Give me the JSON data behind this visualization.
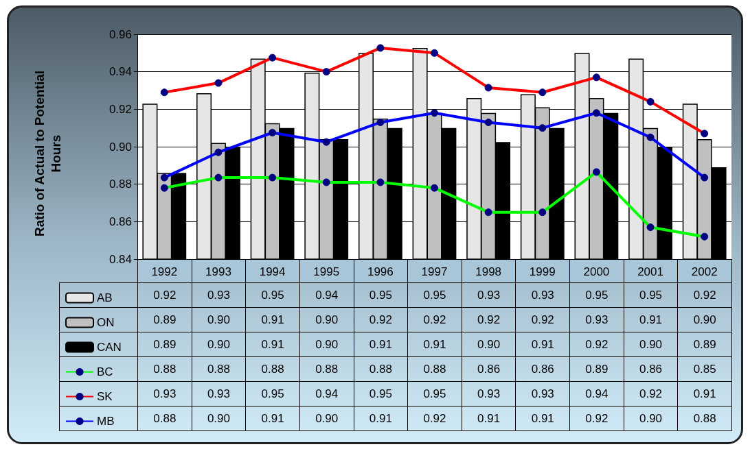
{
  "chart_data": {
    "type": "bar",
    "ylabel": "Ratio of Actual to Potential Hours",
    "categories": [
      "1992",
      "1993",
      "1994",
      "1995",
      "1996",
      "1997",
      "1998",
      "1999",
      "2000",
      "2001",
      "2002"
    ],
    "series": [
      {
        "name": "AB",
        "color": "#e6e6e6",
        "values": [
          0.923,
          0.9285,
          0.947,
          0.9395,
          0.95,
          0.9527,
          0.926,
          0.928,
          0.95,
          0.947,
          0.923
        ],
        "value_labels": [
          "0.92",
          "0.93",
          "0.95",
          "0.94",
          "0.95",
          "0.95",
          "0.93",
          "0.93",
          "0.95",
          "0.95",
          "0.92"
        ]
      },
      {
        "name": "ON",
        "color": "#c0c0c0",
        "values": [
          0.886,
          0.902,
          0.9125,
          0.904,
          0.915,
          0.918,
          0.918,
          0.921,
          0.926,
          0.91,
          0.904
        ],
        "value_labels": [
          "0.89",
          "0.90",
          "0.91",
          "0.90",
          "0.92",
          "0.92",
          "0.92",
          "0.92",
          "0.93",
          "0.91",
          "0.90"
        ]
      },
      {
        "name": "CAN",
        "color": "#000000",
        "values": [
          0.886,
          0.9,
          0.91,
          0.904,
          0.91,
          0.91,
          0.9025,
          0.91,
          0.918,
          0.9,
          0.889
        ],
        "value_labels": [
          "0.89",
          "0.90",
          "0.91",
          "0.90",
          "0.91",
          "0.91",
          "0.90",
          "0.91",
          "0.92",
          "0.90",
          "0.89"
        ]
      },
      {
        "name": "BC",
        "type": "line",
        "color": "#00ff00",
        "values": [
          0.878,
          0.8835,
          0.8835,
          0.881,
          0.881,
          0.878,
          0.865,
          0.865,
          0.8865,
          0.857,
          0.852
        ],
        "value_labels": [
          "0.88",
          "0.88",
          "0.88",
          "0.88",
          "0.88",
          "0.88",
          "0.86",
          "0.86",
          "0.89",
          "0.86",
          "0.85"
        ]
      },
      {
        "name": "SK",
        "type": "line",
        "color": "#ff0000",
        "values": [
          0.929,
          0.934,
          0.9475,
          0.94,
          0.9527,
          0.95,
          0.9315,
          0.929,
          0.937,
          0.924,
          0.907
        ],
        "value_labels": [
          "0.93",
          "0.93",
          "0.95",
          "0.94",
          "0.95",
          "0.95",
          "0.93",
          "0.93",
          "0.94",
          "0.92",
          "0.91"
        ]
      },
      {
        "name": "MB",
        "type": "line",
        "color": "#0000ff",
        "values": [
          0.8835,
          0.897,
          0.9075,
          0.9025,
          0.913,
          0.918,
          0.913,
          0.91,
          0.918,
          0.905,
          0.8835
        ],
        "value_labels": [
          "0.88",
          "0.90",
          "0.91",
          "0.90",
          "0.91",
          "0.92",
          "0.91",
          "0.91",
          "0.92",
          "0.90",
          "0.88"
        ]
      }
    ],
    "ylim": [
      0.84,
      0.96
    ],
    "yticks": [
      0.84,
      0.86,
      0.88,
      {
        "value": 0.9,
        "label": "0.90"
      },
      0.92,
      0.94,
      0.96
    ],
    "grid": "y",
    "legend": "bottom left",
    "marker": "circle",
    "line_style": "solid"
  }
}
